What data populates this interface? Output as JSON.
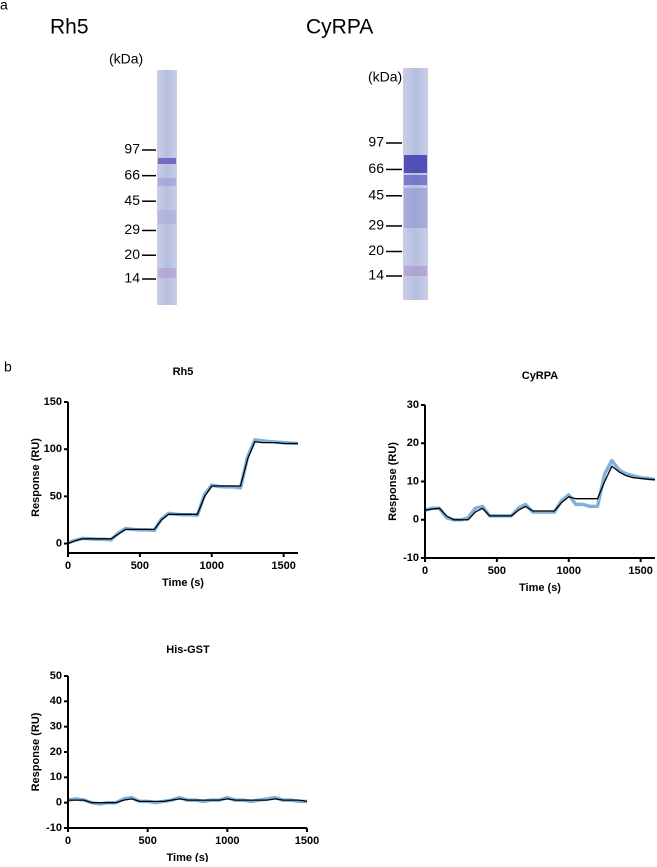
{
  "panel_labels": [
    "a",
    "b"
  ],
  "gels": [
    {
      "title": "Rh5",
      "unit": "(kDa)",
      "markers": [
        97,
        66,
        45,
        29,
        20,
        14
      ]
    },
    {
      "title": "CyRPA",
      "unit": "(kDa)",
      "markers": [
        97,
        66,
        45,
        29,
        20,
        14
      ]
    }
  ],
  "chart_data": [
    {
      "type": "line",
      "title": "Rh5",
      "xlabel": "Time (s)",
      "ylabel": "Response  (RU)",
      "xlim": [
        0,
        1600
      ],
      "ylim": [
        -10,
        150
      ],
      "xticks": [
        0,
        500,
        1000,
        1500
      ],
      "yticks": [
        0,
        50,
        100,
        150
      ],
      "x": [
        0,
        50,
        100,
        150,
        200,
        250,
        300,
        350,
        400,
        450,
        500,
        550,
        600,
        650,
        700,
        750,
        800,
        850,
        900,
        950,
        1000,
        1050,
        1100,
        1150,
        1200,
        1250,
        1300,
        1350,
        1400,
        1450,
        1500,
        1550,
        1600
      ],
      "series": [
        {
          "color": "#7fb1dc",
          "values": [
            1,
            3.5,
            5.5,
            5,
            4.5,
            4.5,
            4,
            11,
            16,
            15,
            14.5,
            14.5,
            14,
            26,
            32,
            31,
            30.5,
            30.5,
            30,
            52,
            62,
            60.5,
            60,
            60,
            59,
            92,
            110,
            109,
            108,
            107.5,
            107,
            106.5,
            106
          ]
        },
        {
          "color": "#000000",
          "values": [
            0,
            3,
            5,
            5,
            5,
            5,
            5,
            10,
            15,
            15,
            15,
            15,
            15,
            25,
            31,
            31,
            31,
            31,
            31,
            50,
            61,
            61,
            61,
            61,
            61,
            90,
            108,
            107,
            107,
            107,
            106,
            106,
            106
          ]
        }
      ]
    },
    {
      "type": "line",
      "title": "CyRPA",
      "xlabel": "Time (s)",
      "ylabel": "Response (RU)",
      "xlim": [
        0,
        1600
      ],
      "ylim": [
        -10,
        30
      ],
      "xticks": [
        0,
        500,
        1000,
        1500
      ],
      "yticks": [
        -10,
        0,
        10,
        20,
        30
      ],
      "x": [
        0,
        50,
        100,
        150,
        200,
        250,
        300,
        350,
        400,
        450,
        500,
        550,
        600,
        650,
        700,
        750,
        800,
        850,
        900,
        950,
        1000,
        1050,
        1100,
        1150,
        1200,
        1250,
        1300,
        1350,
        1400,
        1450,
        1500,
        1550,
        1600
      ],
      "series": [
        {
          "color": "#7fb1dc",
          "values": [
            2.5,
            3,
            3,
            0.5,
            0,
            0,
            0.5,
            3,
            3.5,
            1,
            1,
            1,
            1,
            3,
            4,
            2,
            2,
            2,
            2,
            5,
            6.5,
            4,
            4,
            3.5,
            3.5,
            12,
            15.5,
            13,
            12,
            11.5,
            11,
            10.8,
            10.5
          ]
        },
        {
          "color": "#000000",
          "values": [
            2.5,
            2.8,
            3,
            1,
            0,
            0,
            0,
            2,
            3,
            1,
            1,
            1,
            1,
            2.5,
            3.5,
            2.3,
            2.3,
            2.3,
            2.3,
            4.5,
            6,
            5.5,
            5.5,
            5.5,
            5.5,
            10,
            14,
            12.5,
            11.5,
            11,
            10.8,
            10.6,
            10.5
          ]
        }
      ]
    },
    {
      "type": "line",
      "title": "His-GST",
      "xlabel": "Time (s)",
      "ylabel": "Response (RU)",
      "xlim": [
        0,
        1500
      ],
      "ylim": [
        -10,
        50
      ],
      "xticks": [
        0,
        500,
        1000,
        1500
      ],
      "yticks": [
        -10,
        0,
        10,
        20,
        30,
        40,
        50
      ],
      "x": [
        0,
        50,
        100,
        150,
        200,
        250,
        300,
        350,
        400,
        450,
        500,
        550,
        600,
        650,
        700,
        750,
        800,
        850,
        900,
        950,
        1000,
        1050,
        1100,
        1150,
        1200,
        1250,
        1300,
        1350,
        1400,
        1450,
        1500
      ],
      "series": [
        {
          "color": "#7fb1dc",
          "values": [
            1,
            1.5,
            1,
            0,
            -0.5,
            0,
            0,
            1.5,
            2,
            0.5,
            0.5,
            0,
            0.5,
            1,
            2,
            1,
            1,
            0.5,
            1,
            1,
            2,
            1,
            1,
            0.5,
            1,
            1.5,
            2,
            1,
            1,
            0.5,
            0.5
          ]
        },
        {
          "color": "#000000",
          "values": [
            1,
            1,
            1,
            0,
            0,
            0,
            0,
            1,
            1.5,
            0.5,
            0.5,
            0.5,
            0.5,
            1,
            1.5,
            1,
            1,
            1,
            1,
            1,
            1.5,
            1,
            1,
            1,
            1,
            1,
            1.5,
            1,
            1,
            1,
            0.5
          ]
        }
      ]
    }
  ]
}
